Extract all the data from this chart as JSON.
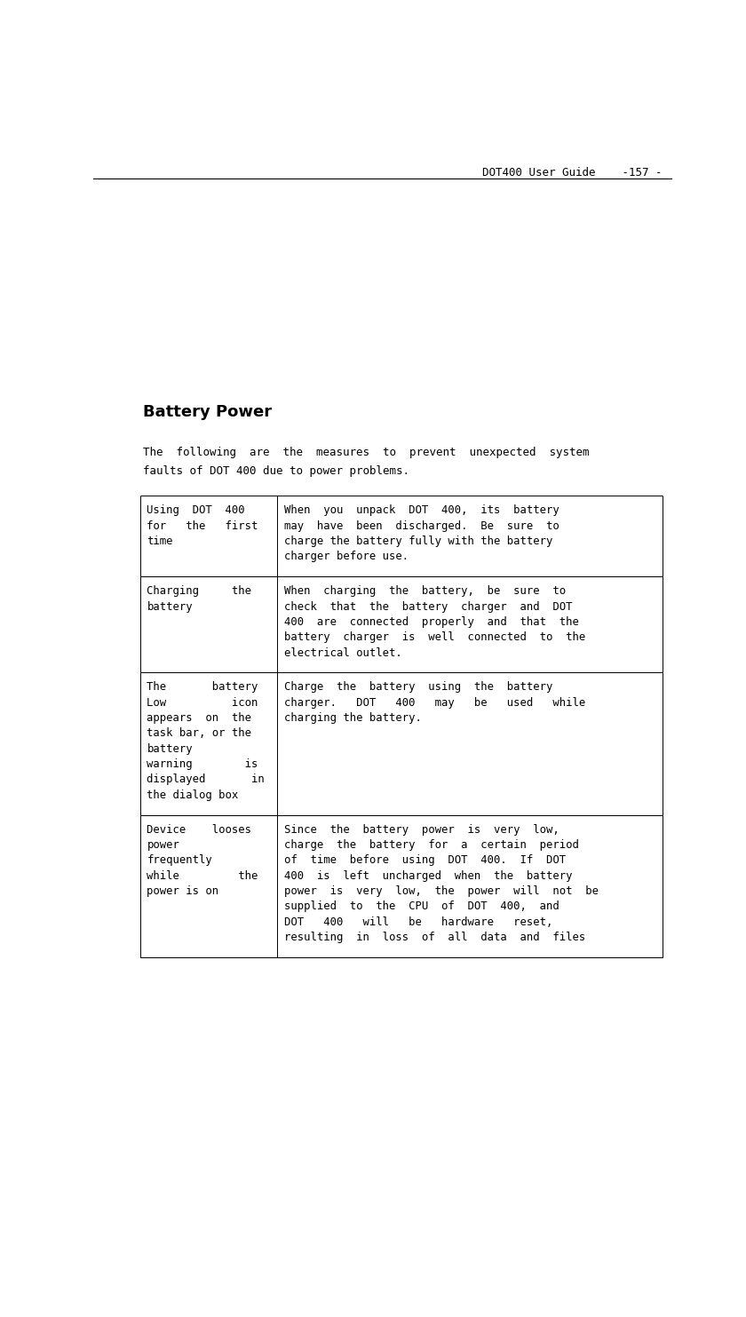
{
  "page_title": "DOT400 User Guide    -157 -",
  "section_title": "Battery Power",
  "intro_line1": "The  following  are  the  measures  to  prevent  unexpected  system",
  "intro_line2": "faults of DOT 400 due to power problems.",
  "table_rows": [
    {
      "left_lines": [
        "Using  DOT  400",
        "for   the   first",
        "time"
      ],
      "right_lines": [
        "When  you  unpack  DOT  400,  its  battery",
        "may  have  been  discharged.  Be  sure  to",
        "charge the battery fully with the battery",
        "charger before use."
      ]
    },
    {
      "left_lines": [
        "Charging     the",
        "battery"
      ],
      "right_lines": [
        "When  charging  the  battery,  be  sure  to",
        "check  that  the  battery  charger  and  DOT",
        "400  are  connected  properly  and  that  the",
        "battery  charger  is  well  connected  to  the",
        "electrical outlet."
      ]
    },
    {
      "left_lines": [
        "The       battery",
        "Low          icon",
        "appears  on  the",
        "task bar, or the",
        "battery",
        "warning        is",
        "displayed       in",
        "the dialog box"
      ],
      "right_lines": [
        "Charge  the  battery  using  the  battery",
        "charger.   DOT   400   may   be   used   while",
        "charging the battery."
      ]
    },
    {
      "left_lines": [
        "Device    looses",
        "power",
        "frequently",
        "while         the",
        "power is on"
      ],
      "right_lines": [
        "Since  the  battery  power  is  very  low,",
        "charge  the  battery  for  a  certain  period",
        "of  time  before  using  DOT  400.  If  DOT",
        "400  is  left  uncharged  when  the  battery",
        "power  is  very  low,  the  power  will  not  be",
        "supplied  to  the  CPU  of  DOT  400,  and",
        "DOT   400   will   be   hardware   reset,",
        "resulting  in  loss  of  all  data  and  files"
      ]
    }
  ],
  "bg_color": "#ffffff",
  "text_color": "#000000",
  "header_fontsize": 9,
  "title_fontsize": 13,
  "body_fontsize": 9,
  "table_fontsize": 8.8
}
